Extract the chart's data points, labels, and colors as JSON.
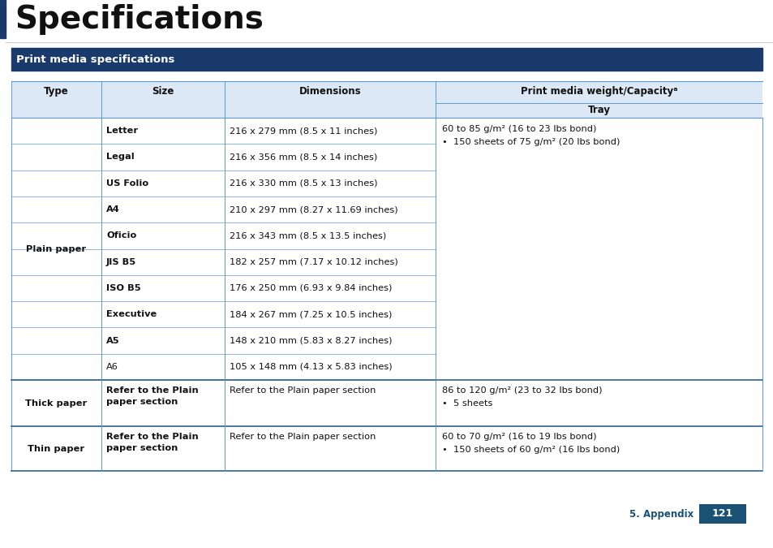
{
  "title": "Specifications",
  "section_header": "Print media specifications",
  "section_header_bg": "#1a3a6b",
  "section_header_color": "#ffffff",
  "footer_text": "5. Appendix",
  "footer_number": "121",
  "footer_color": "#1a5276",
  "plain_sizes": [
    "Letter",
    "Legal",
    "US Folio",
    "A4",
    "Oficio",
    "JIS B5",
    "ISO B5",
    "Executive",
    "A5",
    "A6"
  ],
  "plain_sizes_bold": [
    true,
    true,
    true,
    true,
    true,
    true,
    true,
    true,
    true,
    false
  ],
  "plain_dims": [
    "216 x 279 mm (8.5 x 11 inches)",
    "216 x 356 mm (8.5 x 14 inches)",
    "216 x 330 mm (8.5 x 13 inches)",
    "210 x 297 mm (8.27 x 11.69 inches)",
    "216 x 343 mm (8.5 x 13.5 inches)",
    "182 x 257 mm (7.17 x 10.12 inches)",
    "176 x 250 mm (6.93 x 9.84 inches)",
    "184 x 267 mm (7.25 x 10.5 inches)",
    "148 x 210 mm (5.83 x 8.27 inches)",
    "105 x 148 mm (4.13 x 5.83 inches)"
  ],
  "plain_tray_line1": "60 to 85 g/m² (16 to 23 lbs bond)",
  "plain_tray_line2": "•  150 sheets of 75 g/m² (20 lbs bond)",
  "thick_size": "Refer to the Plain\npaper section",
  "thick_dim": "Refer to the Plain paper section",
  "thick_tray_line1": "86 to 120 g/m² (23 to 32 lbs bond)",
  "thick_tray_line2": "•  5 sheets",
  "thin_size": "Refer to the Plain\npaper section",
  "thin_dim": "Refer to the Plain paper section",
  "thin_tray_line1": "60 to 70 g/m² (16 to 19 lbs bond)",
  "thin_tray_line2": "•  150 sheets of 60 g/m² (16 lbs bond)",
  "line_color": "#5b9bd5",
  "section_line_color": "#2e6096",
  "bg_color": "#ffffff",
  "left_bar_color": "#1a3a6b",
  "table_header_bg": "#dce8f5",
  "title_font_size": 28,
  "header_font_size": 8.5,
  "cell_font_size": 8.2,
  "header_labels_row1": [
    "Type",
    "Size",
    "Dimensions",
    "Print media weight/Capacityᵃ"
  ],
  "header_label_row2": "Tray"
}
